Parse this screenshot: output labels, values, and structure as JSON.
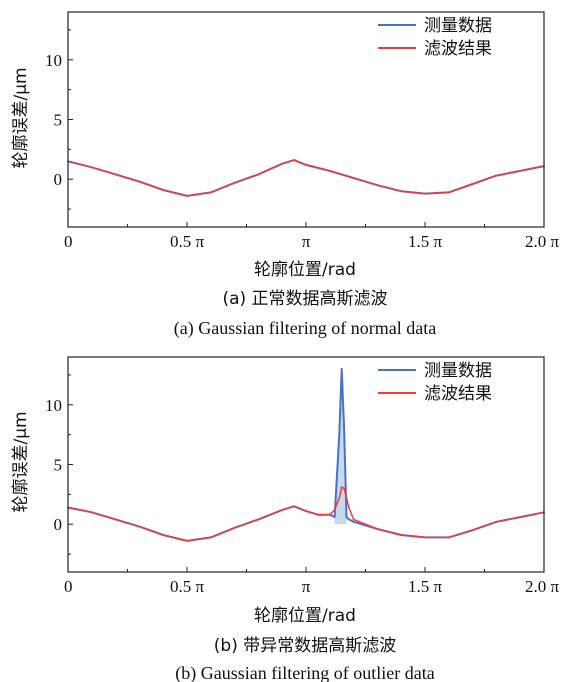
{
  "colors": {
    "measured": "#4a72c4",
    "filtered": "#ee3b3b",
    "fill": "#c9d8ef"
  },
  "chart_data": [
    {
      "type": "line",
      "panel": "a",
      "caption_cn": "(a)  正常数据高斯滤波",
      "caption_en": "(a)  Gaussian filtering of normal data",
      "xlabel": "轮廓位置/rad",
      "ylabel": "轮廓误差/μm",
      "xlim": [
        0,
        2.0
      ],
      "ylim": [
        -4,
        14
      ],
      "x_tick_labels": [
        "0",
        "0.5 π",
        "π",
        "1.5 π",
        "2.0 π"
      ],
      "x_tick_values": [
        0,
        0.5,
        1.0,
        1.5,
        2.0
      ],
      "y_ticks": [
        0,
        5,
        10
      ],
      "y_tick_labels": [
        "0",
        "5",
        "10"
      ],
      "grid": false,
      "legend_position": "top-right",
      "series": [
        {
          "name": "测量数据",
          "color": "#4a72c4",
          "x": [
            0,
            0.1,
            0.2,
            0.3,
            0.4,
            0.5,
            0.6,
            0.7,
            0.8,
            0.9,
            0.95,
            1.0,
            1.1,
            1.2,
            1.3,
            1.4,
            1.5,
            1.6,
            1.7,
            1.8,
            1.9,
            2.0
          ],
          "y": [
            1.5,
            1.0,
            0.4,
            -0.2,
            -0.9,
            -1.4,
            -1.1,
            -0.3,
            0.4,
            1.3,
            1.6,
            1.2,
            0.7,
            0.1,
            -0.5,
            -1.0,
            -1.2,
            -1.1,
            -0.4,
            0.3,
            0.7,
            1.1
          ]
        },
        {
          "name": "滤波结果",
          "color": "#ee3b3b",
          "x": [
            0,
            0.1,
            0.2,
            0.3,
            0.4,
            0.5,
            0.6,
            0.7,
            0.8,
            0.9,
            0.95,
            1.0,
            1.1,
            1.2,
            1.3,
            1.4,
            1.5,
            1.6,
            1.7,
            1.8,
            1.9,
            2.0
          ],
          "y": [
            1.5,
            1.0,
            0.4,
            -0.2,
            -0.9,
            -1.4,
            -1.1,
            -0.3,
            0.4,
            1.3,
            1.6,
            1.2,
            0.7,
            0.1,
            -0.5,
            -1.0,
            -1.2,
            -1.1,
            -0.4,
            0.3,
            0.7,
            1.1
          ]
        }
      ]
    },
    {
      "type": "line",
      "panel": "b",
      "caption_cn": "(b)  带异常数据高斯滤波",
      "caption_en": "(b)  Gaussian filtering of outlier data",
      "xlabel": "轮廓位置/rad",
      "ylabel": "轮廓误差/μm",
      "xlim": [
        0,
        2.0
      ],
      "ylim": [
        -4,
        14
      ],
      "x_tick_labels": [
        "0",
        "0.5 π",
        "π",
        "1.5 π",
        "2.0 π"
      ],
      "x_tick_values": [
        0,
        0.5,
        1.0,
        1.5,
        2.0
      ],
      "y_ticks": [
        0,
        5,
        10
      ],
      "y_tick_labels": [
        "0",
        "5",
        "10"
      ],
      "grid": false,
      "legend_position": "top-right",
      "series": [
        {
          "name": "测量数据",
          "color": "#4a72c4",
          "x": [
            0,
            0.1,
            0.2,
            0.3,
            0.4,
            0.5,
            0.6,
            0.7,
            0.8,
            0.9,
            0.95,
            1.0,
            1.05,
            1.1,
            1.12,
            1.14,
            1.15,
            1.16,
            1.17,
            1.18,
            1.2,
            1.3,
            1.4,
            1.5,
            1.6,
            1.7,
            1.8,
            1.9,
            2.0
          ],
          "y": [
            1.4,
            1.0,
            0.4,
            -0.2,
            -0.9,
            -1.4,
            -1.1,
            -0.3,
            0.4,
            1.2,
            1.5,
            1.1,
            0.8,
            0.8,
            0.6,
            7.5,
            13.0,
            8.0,
            0.6,
            0.4,
            0.2,
            -0.4,
            -0.9,
            -1.1,
            -1.1,
            -0.5,
            0.2,
            0.6,
            1.0
          ]
        },
        {
          "name": "滤波结果",
          "color": "#ee3b3b",
          "x": [
            0,
            0.1,
            0.2,
            0.3,
            0.4,
            0.5,
            0.6,
            0.7,
            0.8,
            0.9,
            0.95,
            1.0,
            1.05,
            1.1,
            1.12,
            1.14,
            1.15,
            1.16,
            1.17,
            1.18,
            1.2,
            1.3,
            1.4,
            1.5,
            1.6,
            1.7,
            1.8,
            1.9,
            2.0
          ],
          "y": [
            1.4,
            1.0,
            0.4,
            -0.2,
            -0.9,
            -1.4,
            -1.1,
            -0.3,
            0.4,
            1.2,
            1.5,
            1.1,
            0.8,
            0.8,
            1.2,
            2.2,
            3.1,
            3.0,
            2.2,
            1.4,
            0.4,
            -0.4,
            -0.9,
            -1.1,
            -1.1,
            -0.5,
            0.2,
            0.6,
            1.0
          ]
        }
      ]
    }
  ]
}
